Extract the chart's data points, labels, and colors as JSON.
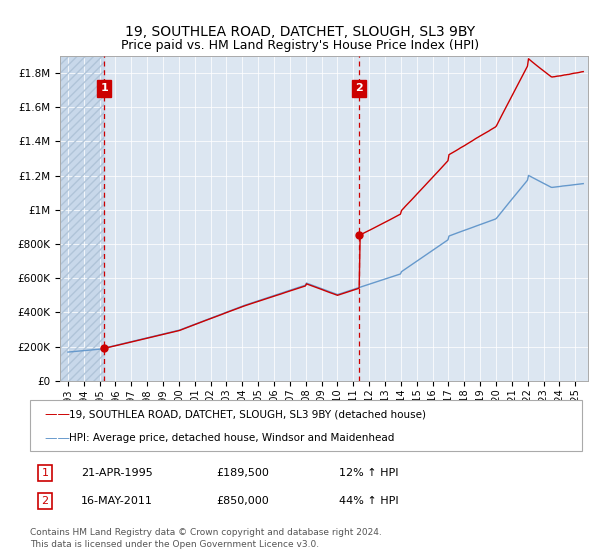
{
  "title": "19, SOUTHLEA ROAD, DATCHET, SLOUGH, SL3 9BY",
  "subtitle": "Price paid vs. HM Land Registry's House Price Index (HPI)",
  "sale1_price": 189500,
  "sale1_label": "1",
  "sale2_price": 850000,
  "sale2_label": "2",
  "house_color": "#cc0000",
  "hpi_color": "#6699cc",
  "vline_color": "#cc0000",
  "background_color": "#dce6f1",
  "ylim_min": 0,
  "ylim_max": 1900000,
  "yticks": [
    0,
    200000,
    400000,
    600000,
    800000,
    1000000,
    1200000,
    1400000,
    1600000,
    1800000
  ],
  "ytick_labels": [
    "£0",
    "£200K",
    "£400K",
    "£600K",
    "£800K",
    "£1M",
    "£1.2M",
    "£1.4M",
    "£1.6M",
    "£1.8M"
  ],
  "xlabel_years": [
    "1993",
    "1994",
    "1995",
    "1996",
    "1997",
    "1998",
    "1999",
    "2000",
    "2001",
    "2002",
    "2003",
    "2004",
    "2005",
    "2006",
    "2007",
    "2008",
    "2009",
    "2010",
    "2011",
    "2012",
    "2013",
    "2014",
    "2015",
    "2016",
    "2017",
    "2018",
    "2019",
    "2020",
    "2021",
    "2022",
    "2023",
    "2024",
    "2025"
  ],
  "legend_house": "19, SOUTHLEA ROAD, DATCHET, SLOUGH, SL3 9BY (detached house)",
  "legend_hpi": "HPI: Average price, detached house, Windsor and Maidenhead",
  "annotation1_date": "21-APR-1995",
  "annotation1_price": "£189,500",
  "annotation1_hpi": "12% ↑ HPI",
  "annotation2_date": "16-MAY-2011",
  "annotation2_price": "£850,000",
  "annotation2_hpi": "44% ↑ HPI",
  "footer": "Contains HM Land Registry data © Crown copyright and database right 2024.\nThis data is licensed under the Open Government Licence v3.0."
}
